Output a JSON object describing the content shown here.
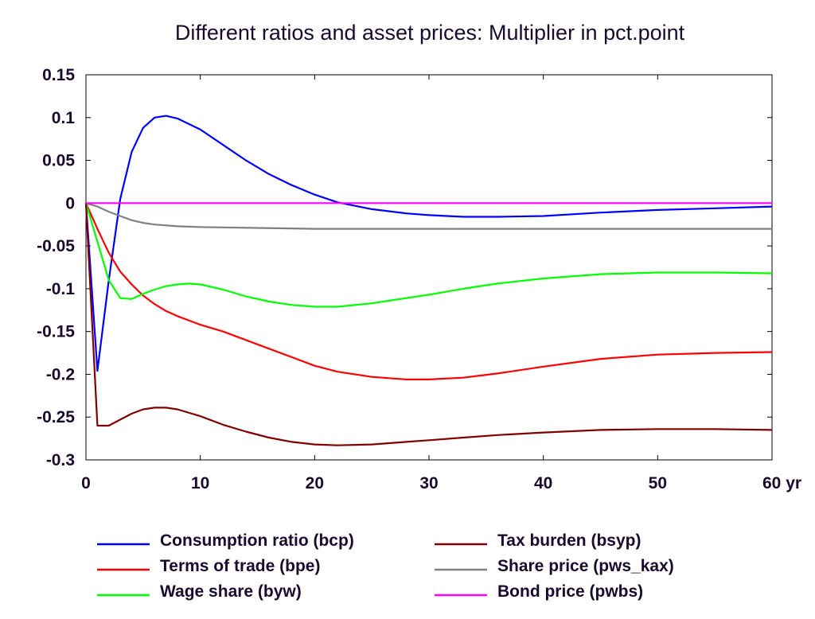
{
  "chart_data": {
    "type": "line",
    "title": "Different ratios and asset prices: Multiplier in pct.point",
    "xlabel": "",
    "ylabel": "",
    "x_unit_label": "yr",
    "xlim": [
      0,
      60
    ],
    "ylim": [
      -0.3,
      0.15
    ],
    "x_ticks": [
      0,
      10,
      20,
      30,
      40,
      50,
      60
    ],
    "x_tick_labels": [
      "0",
      "10",
      "20",
      "30",
      "40",
      "50",
      "60 yr"
    ],
    "y_ticks": [
      0.15,
      0.1,
      0.05,
      0,
      -0.05,
      -0.1,
      -0.15,
      -0.2,
      -0.25,
      -0.3
    ],
    "y_tick_labels": [
      "0.15",
      "0.1",
      "0.05",
      "0",
      "-0.05",
      "-0.1",
      "-0.15",
      "-0.2",
      "-0.25",
      "-0.3"
    ],
    "grid": false,
    "legend_placement": "bottom",
    "series": [
      {
        "name": "Consumption ratio (bcp)",
        "color": "#0000ff",
        "points": [
          [
            0,
            0
          ],
          [
            1,
            -0.196
          ],
          [
            2,
            -0.09
          ],
          [
            3,
            0.005
          ],
          [
            4,
            0.06
          ],
          [
            5,
            0.088
          ],
          [
            6,
            0.1
          ],
          [
            7,
            0.102
          ],
          [
            8,
            0.099
          ],
          [
            10,
            0.086
          ],
          [
            12,
            0.068
          ],
          [
            14,
            0.05
          ],
          [
            16,
            0.034
          ],
          [
            18,
            0.021
          ],
          [
            20,
            0.01
          ],
          [
            22,
            0.001
          ],
          [
            25,
            -0.007
          ],
          [
            28,
            -0.012
          ],
          [
            30,
            -0.014
          ],
          [
            33,
            -0.016
          ],
          [
            36,
            -0.016
          ],
          [
            40,
            -0.015
          ],
          [
            45,
            -0.011
          ],
          [
            50,
            -0.008
          ],
          [
            55,
            -0.006
          ],
          [
            60,
            -0.004
          ]
        ]
      },
      {
        "name": "Terms of trade (bpe)",
        "color": "#ff0000",
        "points": [
          [
            0,
            0
          ],
          [
            1,
            -0.03
          ],
          [
            2,
            -0.058
          ],
          [
            3,
            -0.08
          ],
          [
            4,
            -0.095
          ],
          [
            5,
            -0.108
          ],
          [
            6,
            -0.118
          ],
          [
            7,
            -0.126
          ],
          [
            8,
            -0.132
          ],
          [
            10,
            -0.142
          ],
          [
            12,
            -0.15
          ],
          [
            15,
            -0.165
          ],
          [
            18,
            -0.18
          ],
          [
            20,
            -0.19
          ],
          [
            22,
            -0.197
          ],
          [
            25,
            -0.203
          ],
          [
            28,
            -0.206
          ],
          [
            30,
            -0.206
          ],
          [
            33,
            -0.204
          ],
          [
            36,
            -0.199
          ],
          [
            40,
            -0.191
          ],
          [
            45,
            -0.182
          ],
          [
            50,
            -0.177
          ],
          [
            55,
            -0.175
          ],
          [
            60,
            -0.174
          ]
        ]
      },
      {
        "name": "Wage share (byw)",
        "color": "#00ff00",
        "points": [
          [
            0,
            0
          ],
          [
            1,
            -0.045
          ],
          [
            2,
            -0.09
          ],
          [
            3,
            -0.111
          ],
          [
            4,
            -0.112
          ],
          [
            5,
            -0.106
          ],
          [
            6,
            -0.101
          ],
          [
            7,
            -0.097
          ],
          [
            8,
            -0.095
          ],
          [
            9,
            -0.094
          ],
          [
            10,
            -0.095
          ],
          [
            12,
            -0.101
          ],
          [
            14,
            -0.109
          ],
          [
            16,
            -0.115
          ],
          [
            18,
            -0.119
          ],
          [
            20,
            -0.121
          ],
          [
            22,
            -0.121
          ],
          [
            25,
            -0.117
          ],
          [
            28,
            -0.111
          ],
          [
            30,
            -0.107
          ],
          [
            33,
            -0.1
          ],
          [
            36,
            -0.094
          ],
          [
            40,
            -0.088
          ],
          [
            45,
            -0.083
          ],
          [
            50,
            -0.081
          ],
          [
            55,
            -0.081
          ],
          [
            60,
            -0.082
          ]
        ]
      },
      {
        "name": "Tax burden (bsyp)",
        "color": "#800000",
        "points": [
          [
            0,
            0
          ],
          [
            1,
            -0.26
          ],
          [
            2,
            -0.26
          ],
          [
            3,
            -0.253
          ],
          [
            4,
            -0.246
          ],
          [
            5,
            -0.241
          ],
          [
            6,
            -0.239
          ],
          [
            7,
            -0.239
          ],
          [
            8,
            -0.241
          ],
          [
            10,
            -0.249
          ],
          [
            12,
            -0.259
          ],
          [
            14,
            -0.267
          ],
          [
            16,
            -0.274
          ],
          [
            18,
            -0.279
          ],
          [
            20,
            -0.282
          ],
          [
            22,
            -0.283
          ],
          [
            25,
            -0.282
          ],
          [
            28,
            -0.279
          ],
          [
            30,
            -0.277
          ],
          [
            33,
            -0.274
          ],
          [
            36,
            -0.271
          ],
          [
            40,
            -0.268
          ],
          [
            45,
            -0.265
          ],
          [
            50,
            -0.264
          ],
          [
            55,
            -0.264
          ],
          [
            60,
            -0.265
          ]
        ]
      },
      {
        "name": "Share price (pws_kax)",
        "color": "#808080",
        "points": [
          [
            0,
            0
          ],
          [
            1,
            -0.004
          ],
          [
            2,
            -0.01
          ],
          [
            3,
            -0.015
          ],
          [
            4,
            -0.02
          ],
          [
            5,
            -0.023
          ],
          [
            6,
            -0.025
          ],
          [
            8,
            -0.027
          ],
          [
            10,
            -0.028
          ],
          [
            15,
            -0.029
          ],
          [
            20,
            -0.03
          ],
          [
            30,
            -0.03
          ],
          [
            40,
            -0.03
          ],
          [
            50,
            -0.03
          ],
          [
            60,
            -0.03
          ]
        ]
      },
      {
        "name": "Bond price (pwbs)",
        "color": "#ff00ff",
        "points": [
          [
            0,
            0
          ],
          [
            60,
            0
          ]
        ]
      }
    ]
  }
}
